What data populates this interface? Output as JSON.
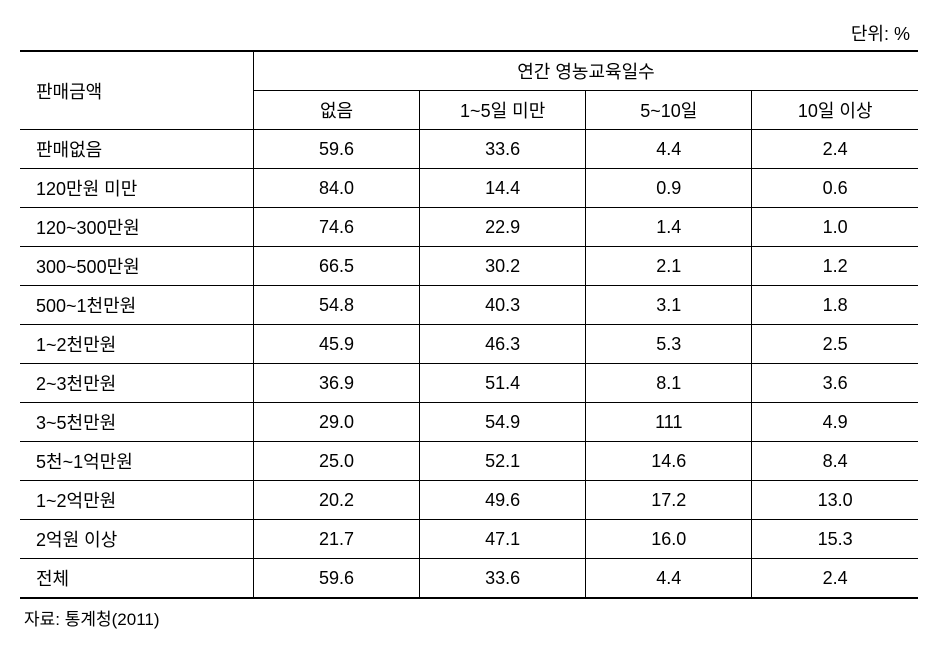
{
  "unit": "단위: %",
  "header": {
    "rowLabel": "판매금액",
    "group": "연간 영농교육일수",
    "cols": [
      "없음",
      "1~5일 미만",
      "5~10일",
      "10일 이상"
    ]
  },
  "rows": [
    {
      "label": "판매없음",
      "vals": [
        "59.6",
        "33.6",
        "4.4",
        "2.4"
      ]
    },
    {
      "label": "120만원 미만",
      "vals": [
        "84.0",
        "14.4",
        "0.9",
        "0.6"
      ]
    },
    {
      "label": "120~300만원",
      "vals": [
        "74.6",
        "22.9",
        "1.4",
        "1.0"
      ]
    },
    {
      "label": "300~500만원",
      "vals": [
        "66.5",
        "30.2",
        "2.1",
        "1.2"
      ]
    },
    {
      "label": "500~1천만원",
      "vals": [
        "54.8",
        "40.3",
        "3.1",
        "1.8"
      ]
    },
    {
      "label": "1~2천만원",
      "vals": [
        "45.9",
        "46.3",
        "5.3",
        "2.5"
      ]
    },
    {
      "label": "2~3천만원",
      "vals": [
        "36.9",
        "51.4",
        "8.1",
        "3.6"
      ]
    },
    {
      "label": "3~5천만원",
      "vals": [
        "29.0",
        "54.9",
        "111",
        "4.9"
      ]
    },
    {
      "label": "5천~1억만원",
      "vals": [
        "25.0",
        "52.1",
        "14.6",
        "8.4"
      ]
    },
    {
      "label": "1~2억만원",
      "vals": [
        "20.2",
        "49.6",
        "17.2",
        "13.0"
      ]
    },
    {
      "label": "2억원 이상",
      "vals": [
        "21.7",
        "47.1",
        "16.0",
        "15.3"
      ]
    },
    {
      "label": "전체",
      "vals": [
        "59.6",
        "33.6",
        "4.4",
        "2.4"
      ]
    }
  ],
  "source": "자료: 통계청(2011)",
  "style": {
    "colWidths": [
      "26%",
      "18.5%",
      "18.5%",
      "18.5%",
      "18.5%"
    ],
    "fontSize": 18,
    "borderColor": "#000000",
    "background": "#ffffff",
    "textColor": "#000000"
  }
}
